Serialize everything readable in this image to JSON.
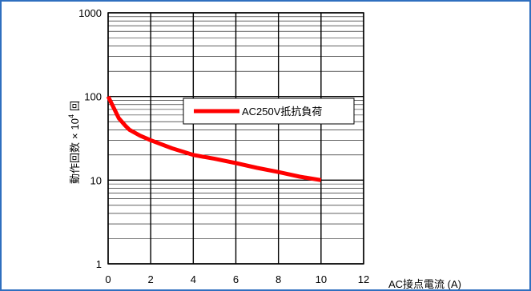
{
  "chart_data": {
    "type": "line",
    "title": "",
    "xlabel": "AC接点電流 (A)",
    "ylabel": "動作回数 × 10⁴ 回",
    "ylabel_main": "動作回数",
    "ylabel_times": "×",
    "ylabel_base": "10",
    "ylabel_exp": "4",
    "ylabel_unit": "回",
    "yscale": "log",
    "xlim": [
      0,
      12
    ],
    "ylim": [
      1,
      1000
    ],
    "x_ticks": [
      "0",
      "2",
      "4",
      "6",
      "8",
      "10",
      "12"
    ],
    "y_ticks": [
      "1",
      "10",
      "100",
      "1000"
    ],
    "grid": true,
    "legend_position": "top-right",
    "series": [
      {
        "name": "AC250V抵抗負荷",
        "color": "#ff0000",
        "x": [
          0,
          0.3,
          0.5,
          0.8,
          1.0,
          1.5,
          2.0,
          3.0,
          4.0,
          5.0,
          6.0,
          7.0,
          8.0,
          9.0,
          10.0
        ],
        "y": [
          100,
          70,
          55,
          45,
          40,
          34,
          30,
          24,
          20,
          18,
          16,
          14,
          12.5,
          11,
          10
        ]
      }
    ]
  }
}
